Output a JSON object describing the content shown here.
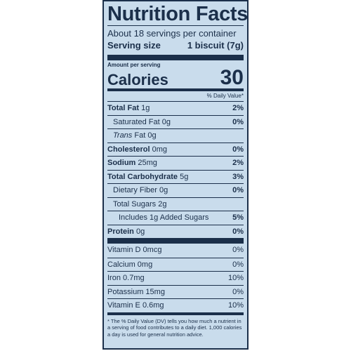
{
  "label": {
    "title": "Nutrition Facts",
    "servings_per_container": "About 18 servings per container",
    "serving_size_label": "Serving size",
    "serving_size_value": "1 biscuit (7g)",
    "amount_per_serving": "Amount per serving",
    "calories_label": "Calories",
    "calories_value": "30",
    "dv_header": "% Daily Value*"
  },
  "nutrients": [
    {
      "name": "Total Fat",
      "amount": "1g",
      "dv": "2%"
    },
    {
      "name": "Saturated Fat",
      "amount": "0g",
      "dv": "0%"
    },
    {
      "name_prefix": "Trans",
      "name": "Fat",
      "amount": "0g",
      "dv": ""
    },
    {
      "name": "Cholesterol",
      "amount": "0mg",
      "dv": "0%"
    },
    {
      "name": "Sodium",
      "amount": "25mg",
      "dv": "2%"
    },
    {
      "name": "Total Carbohydrate",
      "amount": "5g",
      "dv": "3%"
    },
    {
      "name": "Dietary Fiber",
      "amount": "0g",
      "dv": "0%"
    },
    {
      "name": "Total Sugars",
      "amount": "2g",
      "dv": ""
    },
    {
      "name": "Includes 1g Added Sugars",
      "amount": "",
      "dv": "5%"
    },
    {
      "name": "Protein",
      "amount": "0g",
      "dv": "0%"
    }
  ],
  "vitamins": [
    {
      "name": "Vitamin D",
      "amount": "0mcg",
      "dv": "0%"
    },
    {
      "name": "Calcium",
      "amount": "0mg",
      "dv": "0%"
    },
    {
      "name": "Iron",
      "amount": "0.7mg",
      "dv": "10%"
    },
    {
      "name": "Potassium",
      "amount": "15mg",
      "dv": "0%"
    },
    {
      "name": "Vitamin E",
      "amount": "0.6mg",
      "dv": "10%"
    }
  ],
  "footnote": "* The % Daily Value (DV) tells you how much a nutrient in a serving of food contributes to a daily diet. 1,000 calories a day is used for general nutrition advice.",
  "colors": {
    "background": "#c9dcec",
    "ink": "#1b2f4a"
  }
}
